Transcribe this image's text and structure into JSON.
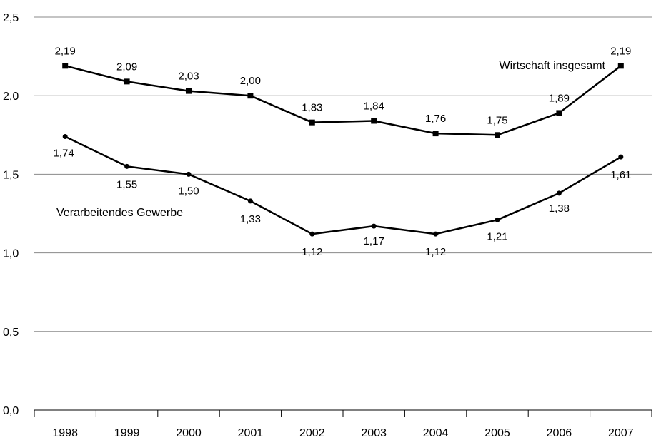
{
  "chart_data": {
    "type": "line",
    "categories": [
      "1998",
      "1999",
      "2000",
      "2001",
      "2002",
      "2003",
      "2004",
      "2005",
      "2006",
      "2007"
    ],
    "ylim": [
      0,
      2.5
    ],
    "yticks": [
      0,
      0.5,
      1.0,
      1.5,
      2.0,
      2.5
    ],
    "ytick_labels": [
      "0,0",
      "0,5",
      "1,0",
      "1,5",
      "2,0",
      "2,5"
    ],
    "grid": true,
    "legend": "none",
    "series": [
      {
        "name": "Wirtschaft insgesamt",
        "marker": "square",
        "values": [
          2.19,
          2.09,
          2.03,
          2.0,
          1.83,
          1.84,
          1.76,
          1.75,
          1.89,
          2.19
        ],
        "labels": [
          "2,19",
          "2,09",
          "2,03",
          "2,00",
          "1,83",
          "1,84",
          "1,76",
          "1,75",
          "1,89",
          "2,19"
        ],
        "color": "#000000"
      },
      {
        "name": "Verarbeitendes Gewerbe",
        "marker": "circle",
        "values": [
          1.74,
          1.55,
          1.5,
          1.33,
          1.12,
          1.17,
          1.12,
          1.21,
          1.38,
          1.61
        ],
        "labels": [
          "1,74",
          "1,55",
          "1,50",
          "1,33",
          "1,12",
          "1,17",
          "1,12",
          "1,21",
          "1,38",
          "1,61"
        ],
        "color": "#000000"
      }
    ]
  }
}
